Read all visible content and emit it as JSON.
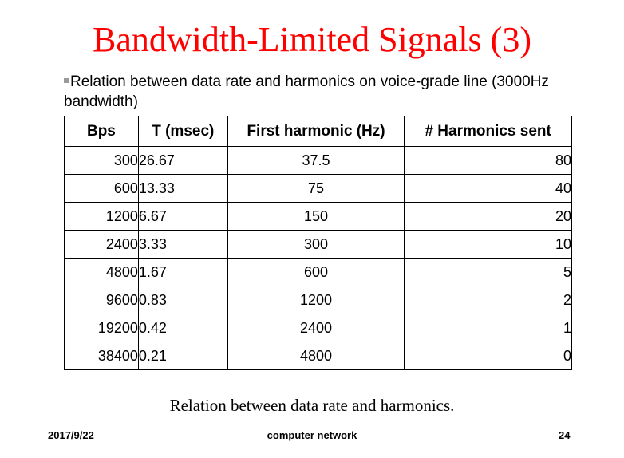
{
  "slide": {
    "title": "Bandwidth-Limited Signals (3)",
    "bullet": "Relation between data rate and harmonics on voice-grade line (3000Hz bandwidth)",
    "caption": "Relation between data rate and harmonics."
  },
  "table": {
    "headers": [
      "Bps",
      "T (msec)",
      "First harmonic (Hz)",
      "# Harmonics sent"
    ],
    "rows": [
      [
        "300",
        "26.67",
        "37.5",
        "80"
      ],
      [
        "600",
        "13.33",
        "75",
        "40"
      ],
      [
        "1200",
        "6.67",
        "150",
        "20"
      ],
      [
        "2400",
        "3.33",
        "300",
        "10"
      ],
      [
        "4800",
        "1.67",
        "600",
        "5"
      ],
      [
        "9600",
        "0.83",
        "1200",
        "2"
      ],
      [
        "19200",
        "0.42",
        "2400",
        "1"
      ],
      [
        "38400",
        "0.21",
        "4800",
        "0"
      ]
    ]
  },
  "footer": {
    "date": "2017/9/22",
    "center": "computer network",
    "page": "24"
  },
  "colors": {
    "title": "#ff0000",
    "bullet_marker": "#9a9a9a"
  }
}
